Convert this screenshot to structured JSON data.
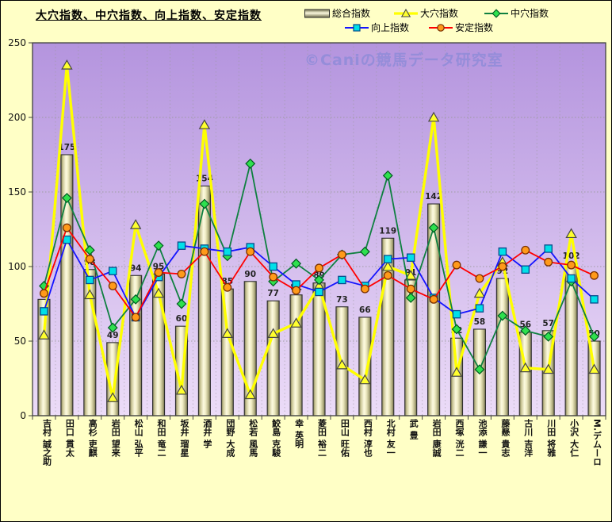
{
  "title": "大穴指数、中穴指数、向上指数、安定指数",
  "watermark": "©Caniの競馬データ研究室",
  "legend": {
    "items": [
      {
        "label": "総合指数",
        "swatch": "bar"
      },
      {
        "label": "大穴指数",
        "swatch": "triangle"
      },
      {
        "label": "中穴指数",
        "swatch": "diamond"
      },
      {
        "label": "向上指数",
        "swatch": "square"
      },
      {
        "label": "安定指数",
        "swatch": "circle"
      }
    ]
  },
  "y_axis": {
    "ticks": [
      "0",
      "50",
      "100",
      "150",
      "200",
      "250"
    ]
  },
  "colors": {
    "page_bg": "#ffffc6",
    "plot_bg_top": "#b494de",
    "plot_bg_bottom": "#ecdcf8",
    "grid": "#9a9a9a",
    "bar_border": "#2e2e2e",
    "bar_light": "#fdfae0",
    "bar_dark": "#75734e",
    "line_yellow": "#ffff00",
    "line_green": "#0f8040",
    "line_blue": "#1414ff",
    "line_red": "#ff0000",
    "marker_triangle": "#ffff2e",
    "marker_diamond": "#2ee04e",
    "marker_square": "#00e0e8",
    "marker_circle": "#ff9a1a",
    "label_color": "#222222"
  },
  "chart_data": {
    "type": "bar",
    "title": "大穴指数、中穴指数、向上指数、安定指数",
    "ylim": [
      0,
      250
    ],
    "grid": true,
    "legend_position": "top-right",
    "categories": [
      "吉村 誠之助",
      "田口 貫太",
      "高杉 吏麒",
      "岩田 望来",
      "松山 弘平",
      "和田 竜二",
      "坂井 瑠星",
      "酒井 学",
      "団野 大成",
      "松若 風馬",
      "鮫島 克駿",
      "幸 英明",
      "菱田 裕二",
      "田山 旺佑",
      "西村 淳也",
      "北村 友一",
      "武 豊",
      "岩田 康誠",
      "西塚 洸二",
      "池添 謙一",
      "藤懸 貴志",
      "古川 吉洋",
      "川田 将雅",
      "小沢 大仁",
      "M.デムーロ"
    ],
    "series": [
      {
        "name": "総合指数",
        "key": "sogo",
        "type": "bar",
        "values": [
          78,
          175,
          98,
          49,
          94,
          95,
          60,
          154,
          85,
          90,
          77,
          81,
          89,
          73,
          66,
          119,
          91,
          142,
          52,
          58,
          92,
          56,
          57,
          102,
          50
        ],
        "labels": [
          null,
          "175",
          "98",
          "49",
          "94",
          "95",
          "60",
          "154",
          "85",
          "90",
          "77",
          "81",
          "89",
          "73",
          "66",
          "119",
          "91",
          "142",
          "52",
          "58",
          "92",
          "56",
          "57",
          "102",
          "50"
        ]
      },
      {
        "name": "大穴指数",
        "key": "oana",
        "type": "line",
        "marker": "triangle",
        "values": [
          54,
          235,
          81,
          12,
          128,
          82,
          17,
          195,
          55,
          14,
          55,
          62,
          87,
          34,
          24,
          100,
          94,
          200,
          29,
          82,
          103,
          32,
          31,
          122,
          31
        ]
      },
      {
        "name": "中穴指数",
        "key": "chuana",
        "type": "line",
        "marker": "diamond",
        "values": [
          87,
          146,
          111,
          59,
          78,
          114,
          75,
          142,
          107,
          169,
          90,
          102,
          91,
          108,
          110,
          161,
          79,
          126,
          58,
          31,
          67,
          57,
          53,
          90,
          53
        ]
      },
      {
        "name": "向上指数",
        "key": "kojo",
        "type": "line",
        "marker": "square",
        "values": [
          70,
          118,
          91,
          97,
          66,
          93,
          114,
          112,
          110,
          113,
          100,
          88,
          83,
          91,
          87,
          105,
          106,
          79,
          68,
          72,
          110,
          98,
          112,
          92,
          78
        ]
      },
      {
        "name": "安定指数",
        "key": "antei",
        "type": "line",
        "marker": "circle",
        "values": [
          82,
          126,
          105,
          87,
          66,
          96,
          95,
          110,
          86,
          110,
          93,
          84,
          99,
          108,
          85,
          94,
          85,
          78,
          101,
          92,
          100,
          111,
          103,
          101,
          94
        ]
      }
    ]
  }
}
